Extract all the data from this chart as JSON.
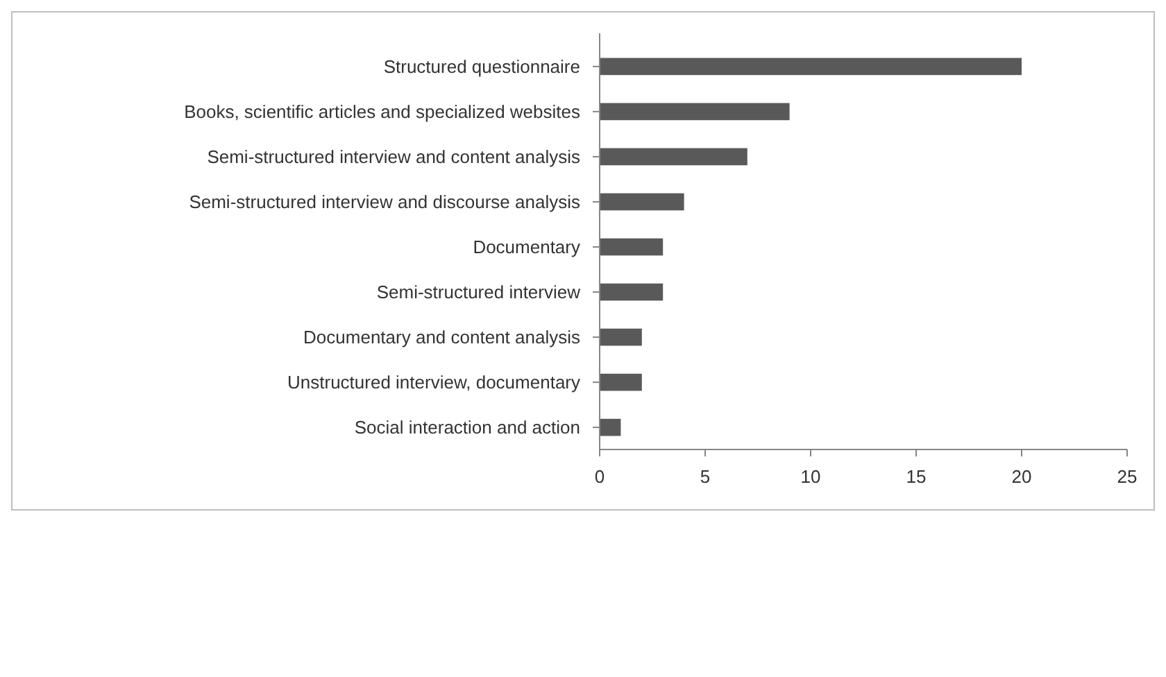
{
  "chart_data": {
    "type": "bar",
    "orientation": "horizontal",
    "categories": [
      "Structured questionnaire",
      "Books, scientific articles and specialized websites",
      "Semi-structured interview and content analysis",
      "Semi-structured interview and discourse analysis",
      "Documentary",
      "Semi-structured interview",
      "Documentary and content analysis",
      "Unstructured interview, documentary",
      "Social interaction and action"
    ],
    "values": [
      20,
      9,
      7,
      4,
      3,
      3,
      2,
      2,
      1
    ],
    "color": "#595959",
    "xlim": [
      0,
      25
    ],
    "xticks": [
      0,
      5,
      10,
      15,
      20,
      25
    ],
    "grid": false
  }
}
